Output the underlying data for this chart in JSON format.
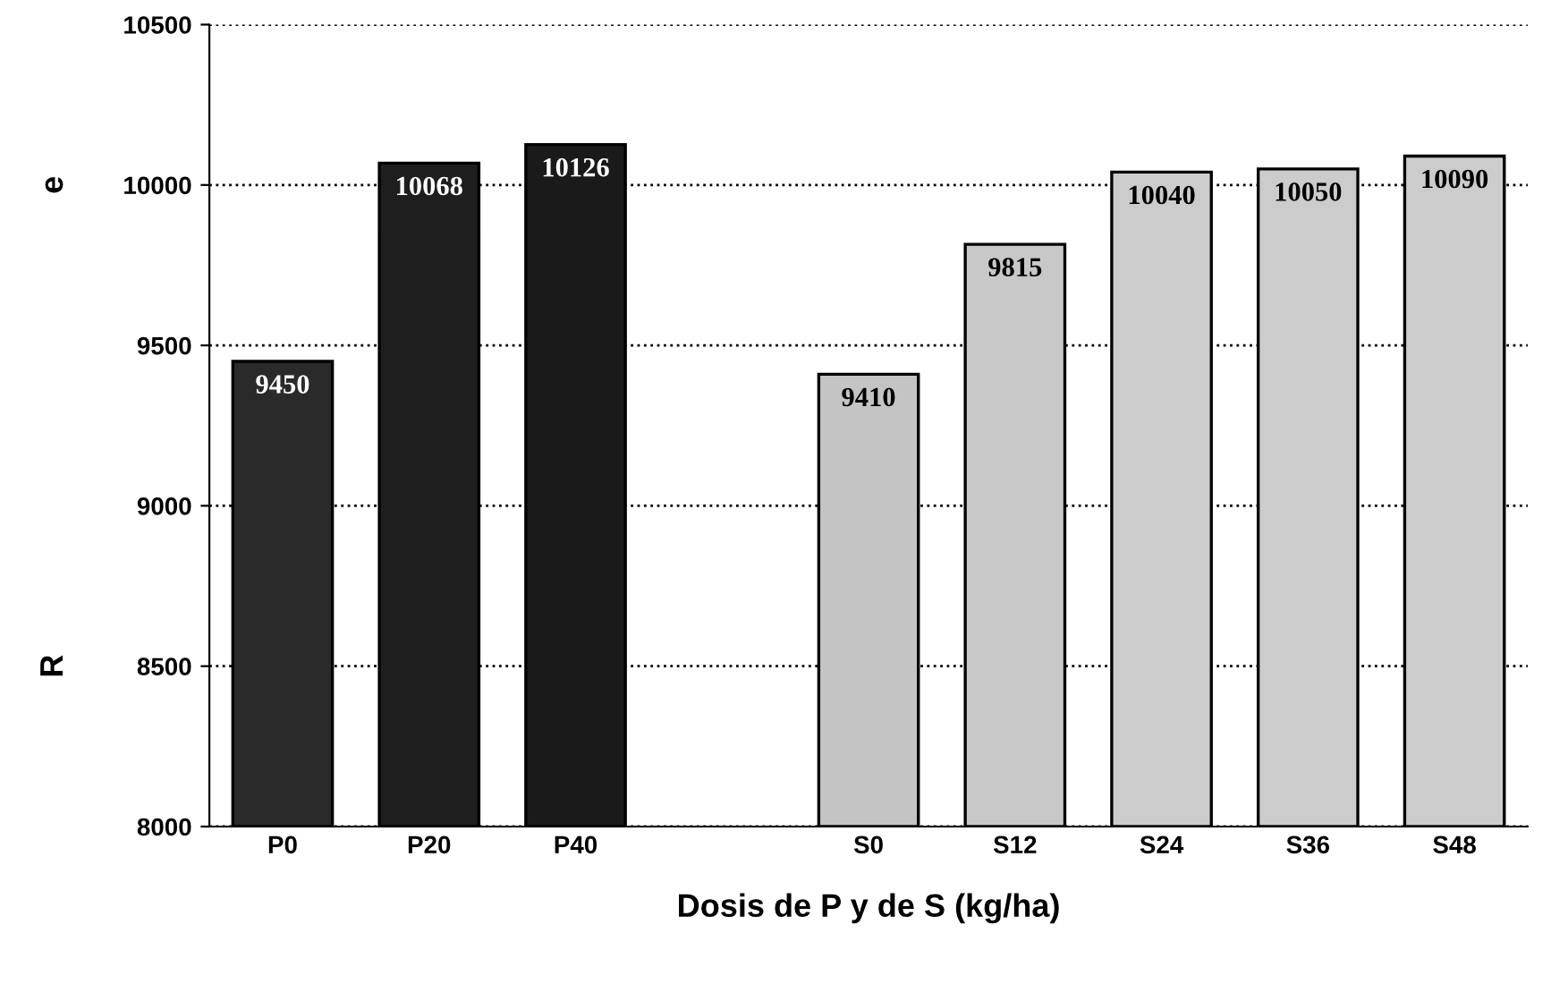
{
  "chart_data": {
    "type": "bar",
    "xlabel": "Dosis de P y de S (kg/ha)",
    "categories": [
      "P0",
      "P20",
      "P40",
      null,
      "S0",
      "S12",
      "S24",
      "S36",
      "S48"
    ],
    "values": [
      9450,
      10068,
      10126,
      null,
      9410,
      9815,
      10040,
      10050,
      10090
    ],
    "colors": [
      "#2a2a2a",
      "#1e1e1e",
      "#1a1a1a",
      null,
      "#c4c4c4",
      "#c8c8c8",
      "#cccccc",
      "#cccccc",
      "#cccccc"
    ],
    "ylim": [
      8000,
      10500
    ],
    "yticks": [
      8000,
      8500,
      9000,
      9500,
      10000,
      10500
    ],
    "grid": "y",
    "data_labels": true,
    "legend": false,
    "annotations": [
      "R",
      "e"
    ]
  }
}
